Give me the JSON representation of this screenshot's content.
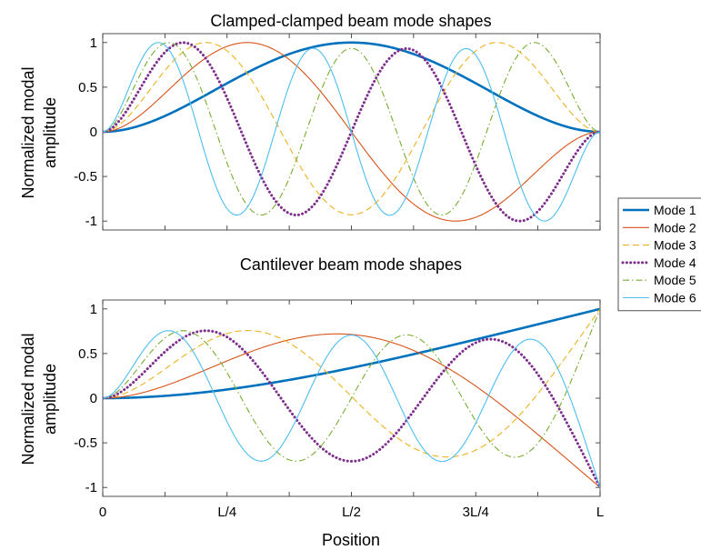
{
  "chart_data": [
    {
      "type": "line",
      "title": "Clamped-clamped beam mode shapes",
      "xlabel": "",
      "ylabel_lines": [
        "Normalized modal",
        "amplitude"
      ],
      "xlim": [
        0,
        1
      ],
      "ylim": [
        -1.1,
        1.1
      ],
      "yticks": [
        1,
        0.5,
        0,
        -0.5,
        -1
      ],
      "ytick_labels": [
        "1",
        "0.5",
        "0",
        "-0.5",
        "-1"
      ],
      "xtick_labels": [],
      "boundary": "clamped-clamped",
      "series": [
        {
          "name": "Mode 1",
          "beta_L": 4.73004,
          "color": "#0072BD",
          "style": "solid-thick"
        },
        {
          "name": "Mode 2",
          "beta_L": 7.8532,
          "color": "#D95319",
          "style": "solid"
        },
        {
          "name": "Mode 3",
          "beta_L": 10.99561,
          "color": "#EDB120",
          "style": "dashed"
        },
        {
          "name": "Mode 4",
          "beta_L": 14.13717,
          "color": "#7E2F8E",
          "style": "dotted"
        },
        {
          "name": "Mode 5",
          "beta_L": 17.27876,
          "color": "#77AC30",
          "style": "dashdot"
        },
        {
          "name": "Mode 6",
          "beta_L": 20.42035,
          "color": "#4DBEEE",
          "style": "solid"
        }
      ]
    },
    {
      "type": "line",
      "title": "Cantilever beam mode shapes",
      "xlabel": "Position",
      "ylabel_lines": [
        "Normalized modal",
        "amplitude"
      ],
      "xlim": [
        0,
        1
      ],
      "ylim": [
        -1.1,
        1.1
      ],
      "yticks": [
        1,
        0.5,
        0,
        -0.5,
        -1
      ],
      "ytick_labels": [
        "1",
        "0.5",
        "0",
        "-0.5",
        "-1"
      ],
      "xticks": [
        0,
        0.25,
        0.5,
        0.75,
        1
      ],
      "xtick_labels": [
        "0",
        "L/4",
        "L/2",
        "3L/4",
        "L"
      ],
      "boundary": "cantilever",
      "series": [
        {
          "name": "Mode 1",
          "beta_L": 1.8751,
          "color": "#0072BD",
          "style": "solid-thick"
        },
        {
          "name": "Mode 2",
          "beta_L": 4.69409,
          "color": "#D95319",
          "style": "solid"
        },
        {
          "name": "Mode 3",
          "beta_L": 7.85476,
          "color": "#EDB120",
          "style": "dashed"
        },
        {
          "name": "Mode 4",
          "beta_L": 10.99554,
          "color": "#7E2F8E",
          "style": "dotted"
        },
        {
          "name": "Mode 5",
          "beta_L": 14.13717,
          "color": "#77AC30",
          "style": "dashdot"
        },
        {
          "name": "Mode 6",
          "beta_L": 17.27876,
          "color": "#4DBEEE",
          "style": "solid"
        }
      ]
    }
  ],
  "legend": {
    "placement": "right",
    "entries": [
      "Mode 1",
      "Mode 2",
      "Mode 3",
      "Mode 4",
      "Mode 5",
      "Mode 6"
    ]
  }
}
